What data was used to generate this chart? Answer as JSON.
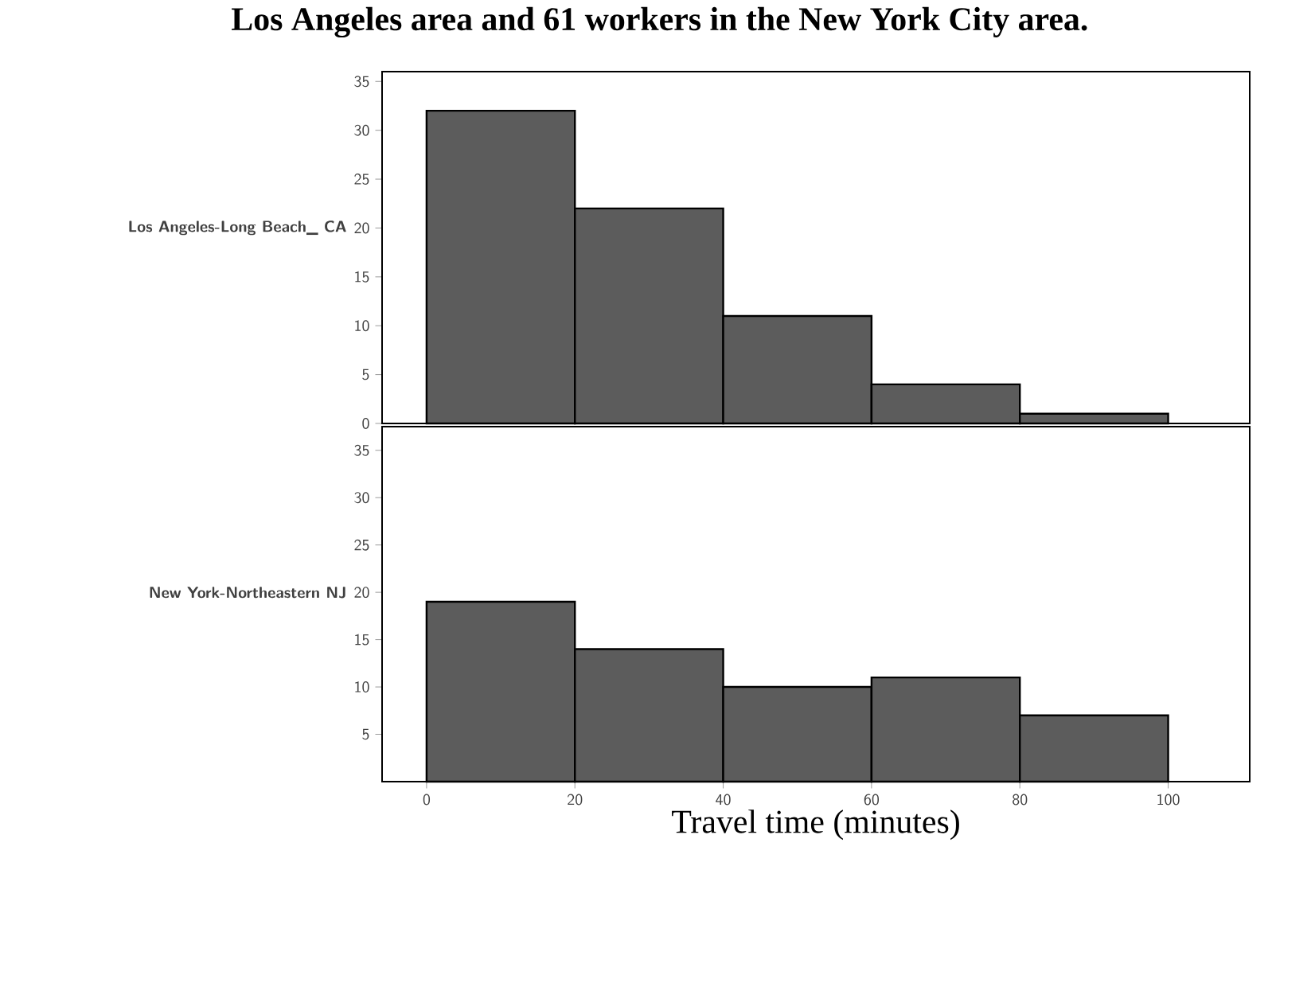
{
  "chart_data": [
    {
      "type": "histogram",
      "title": "Los Angeles area and 61 workers in the New York City area.",
      "ylabel": "Los Angeles-Long Beach_ CA",
      "bins": [
        0,
        20,
        40,
        60,
        80,
        100
      ],
      "values": [
        32,
        22,
        11,
        4,
        1
      ],
      "color": "#5c5c5c",
      "xlim": [
        -6,
        111
      ],
      "ylim": [
        0,
        36
      ],
      "yticks": [
        0,
        5,
        10,
        15,
        20,
        25,
        30,
        35
      ],
      "tick_labels": "y"
    },
    {
      "type": "histogram",
      "ylabel": "New York-Northeastern NJ",
      "xlabel": "Travel time (minutes)",
      "bins": [
        0,
        20,
        40,
        60,
        80,
        100
      ],
      "values": [
        19,
        14,
        10,
        11,
        7
      ],
      "color": "#5c5c5c",
      "xlim": [
        -6,
        111
      ],
      "ylim": [
        0,
        37.5
      ],
      "xticks": [
        0,
        20,
        40,
        60,
        80,
        100
      ],
      "yticks": [
        5,
        10,
        15,
        20,
        25,
        30,
        35
      ]
    }
  ]
}
